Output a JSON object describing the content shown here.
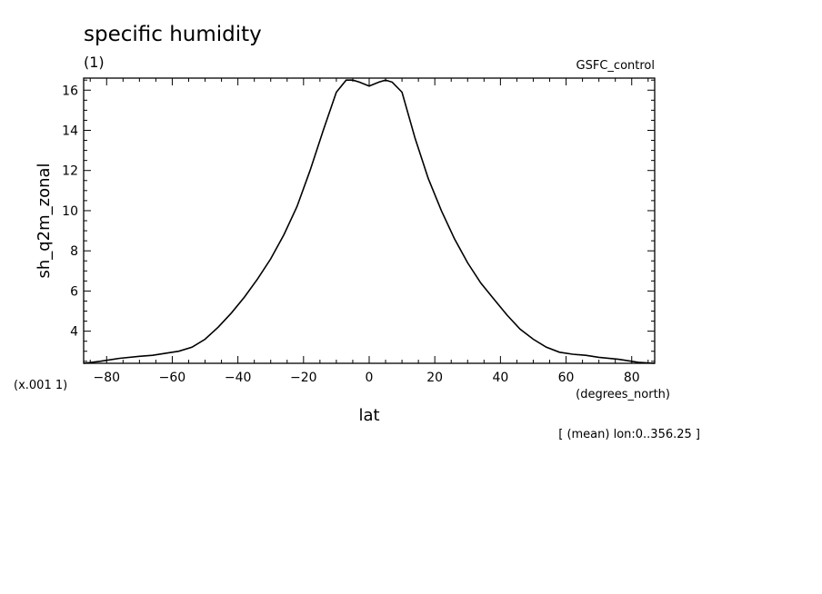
{
  "chart_data": {
    "type": "line",
    "title": "specific humidity",
    "subtitle": "(1)",
    "run_label": "GSFC_control",
    "ylabel": "sh_q2m_zonal",
    "xlabel": "lat",
    "x_units": "(degrees_north)",
    "y_scale_note": "(x.001 1)",
    "footnote": "[ (mean) lon:0..356.25 ]",
    "xlim": [
      -87,
      87
    ],
    "ylim": [
      2.4,
      16.6
    ],
    "x_ticks": [
      -80,
      -60,
      -40,
      -20,
      0,
      20,
      40,
      60,
      80
    ],
    "y_ticks": [
      4,
      6,
      8,
      10,
      12,
      14,
      16
    ],
    "grid": false,
    "series": [
      {
        "x": [
          -87,
          -82,
          -76,
          -70,
          -66,
          -62,
          -58,
          -54,
          -50,
          -46,
          -42,
          -38,
          -34,
          -30,
          -26,
          -22,
          -18,
          -14,
          -10,
          -7,
          -5,
          -3,
          0,
          3,
          5,
          7,
          10,
          14,
          18,
          22,
          26,
          30,
          34,
          38,
          42,
          46,
          50,
          54,
          58,
          62,
          66,
          70,
          76,
          82,
          87
        ],
        "y": [
          2.4,
          2.5,
          2.65,
          2.75,
          2.8,
          2.9,
          3.0,
          3.2,
          3.6,
          4.2,
          4.9,
          5.7,
          6.6,
          7.6,
          8.8,
          10.2,
          12.0,
          14.0,
          15.9,
          16.5,
          16.5,
          16.4,
          16.2,
          16.4,
          16.5,
          16.4,
          15.9,
          13.6,
          11.6,
          10.0,
          8.6,
          7.4,
          6.4,
          5.6,
          4.8,
          4.1,
          3.6,
          3.2,
          2.95,
          2.85,
          2.8,
          2.7,
          2.6,
          2.45,
          2.4
        ]
      }
    ]
  }
}
